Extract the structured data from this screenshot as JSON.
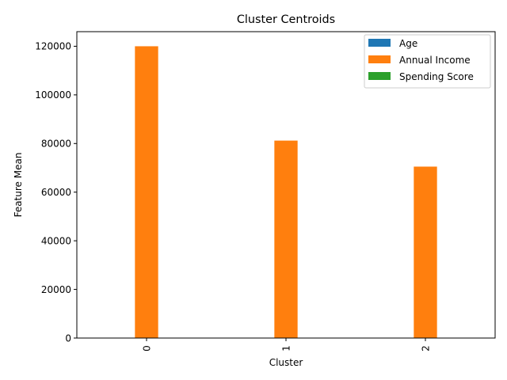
{
  "chart_data": {
    "type": "bar",
    "title": "Cluster Centroids",
    "xlabel": "Cluster",
    "ylabel": "Feature Mean",
    "categories": [
      "0",
      "1",
      "2"
    ],
    "series": [
      {
        "name": "Age",
        "values": [
          38,
          40,
          42
        ]
      },
      {
        "name": "Annual Income",
        "values": [
          120000,
          81200,
          70500
        ]
      },
      {
        "name": "Spending Score",
        "values": [
          50,
          48,
          52
        ]
      }
    ],
    "ylim": [
      0,
      126000
    ],
    "yticks": [
      0,
      20000,
      40000,
      60000,
      80000,
      100000,
      120000
    ],
    "grid": false,
    "legend": "top-right",
    "colors": [
      "#1f77b4",
      "#ff7f0e",
      "#2ca02c"
    ]
  }
}
